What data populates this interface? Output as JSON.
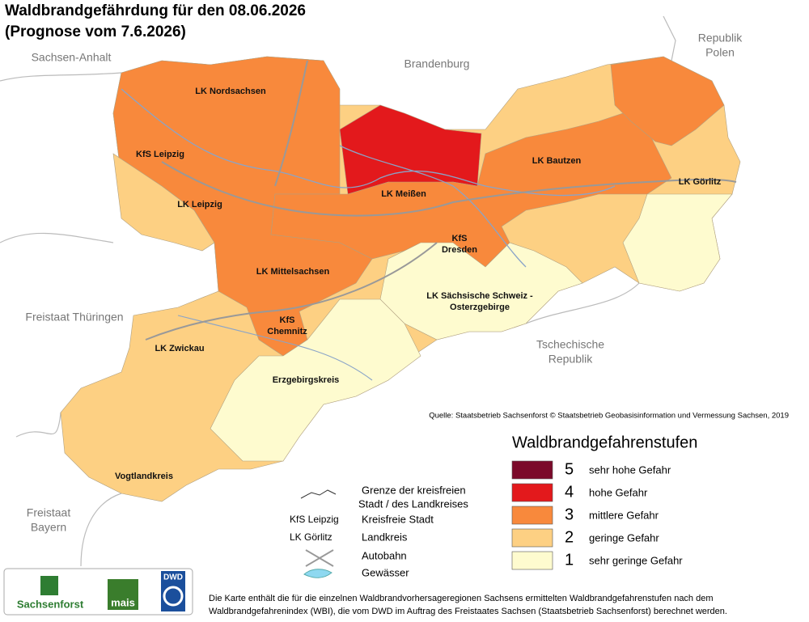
{
  "title": "Waldbrandgefährdung  für den  08.06.2026",
  "subtitle": "(Prognose vom 7.6.2026)",
  "neighbors": [
    [
      "Sachsen-Anhalt"
    ],
    [
      "Brandenburg"
    ],
    [
      "Republik",
      "Polen"
    ],
    [
      "Freistaat Thüringen"
    ],
    [
      "Tschechische",
      "Republik"
    ],
    [
      "Freistaat",
      "Bayern"
    ]
  ],
  "zone_levels": [
    2,
    3,
    2,
    4,
    3,
    3,
    1,
    1,
    1
  ],
  "districts": [
    [
      "LK Nordsachsen"
    ],
    [
      "KfS Leipzig"
    ],
    [
      "LK Leipzig"
    ],
    [
      "LK Meißen"
    ],
    [
      "LK Bautzen"
    ],
    [
      "LK Görlitz"
    ],
    [
      "KfS",
      "Dresden"
    ],
    [
      "LK Mittelsachsen"
    ],
    [
      "LK Sächsische Schweiz -",
      "Osterzgebirge"
    ],
    [
      "KfS",
      "Chemnitz"
    ],
    [
      "LK Zwickau"
    ],
    [
      "Erzgebirgskreis"
    ],
    [
      "Vogtlandkreis"
    ]
  ],
  "source": "Quelle: Staatsbetrieb Sachsenforst  © Staatsbetrieb Geobasisinformation und Vermessung Sachsen, 2019",
  "legend": {
    "title": "Waldbrandgefahrenstufen",
    "levels": [
      {
        "level": 5,
        "label": "sehr hohe Gefahr",
        "color": "#7b0a2a"
      },
      {
        "level": 4,
        "label": "hohe Gefahr",
        "color": "#e3191c"
      },
      {
        "level": 3,
        "label": "mittlere Gefahr",
        "color": "#f8893c"
      },
      {
        "level": 2,
        "label": "geringe Gefahr",
        "color": "#fdd083"
      },
      {
        "level": 1,
        "label": "sehr geringe Gefahr",
        "color": "#fefbcf"
      }
    ]
  },
  "key": {
    "boundary": [
      "Grenze der kreisfreien",
      " Stadt / des Landkreises"
    ],
    "city_sample": "KfS Leipzig",
    "city": "Kreisfreie Stadt",
    "district_sample": "LK Görlitz",
    "district": "Landkreis",
    "motorway": "Autobahn",
    "water": "Gewässer"
  },
  "logos": {
    "sachsenforst": "Sachsenforst",
    "mais": "mais",
    "dwd": "DWD"
  },
  "note": [
    "Die Karte enthält die für die einzelnen Waldbrandvorhersageregionen Sachsens ermittelten Waldbrandgefahrenstufen nach dem",
    "Waldbrandgefahrenindex (WBI), die vom DWD im Auftrag des Freistaates Sachsen (Staatsbetrieb Sachsenforst) berechnet werden."
  ]
}
